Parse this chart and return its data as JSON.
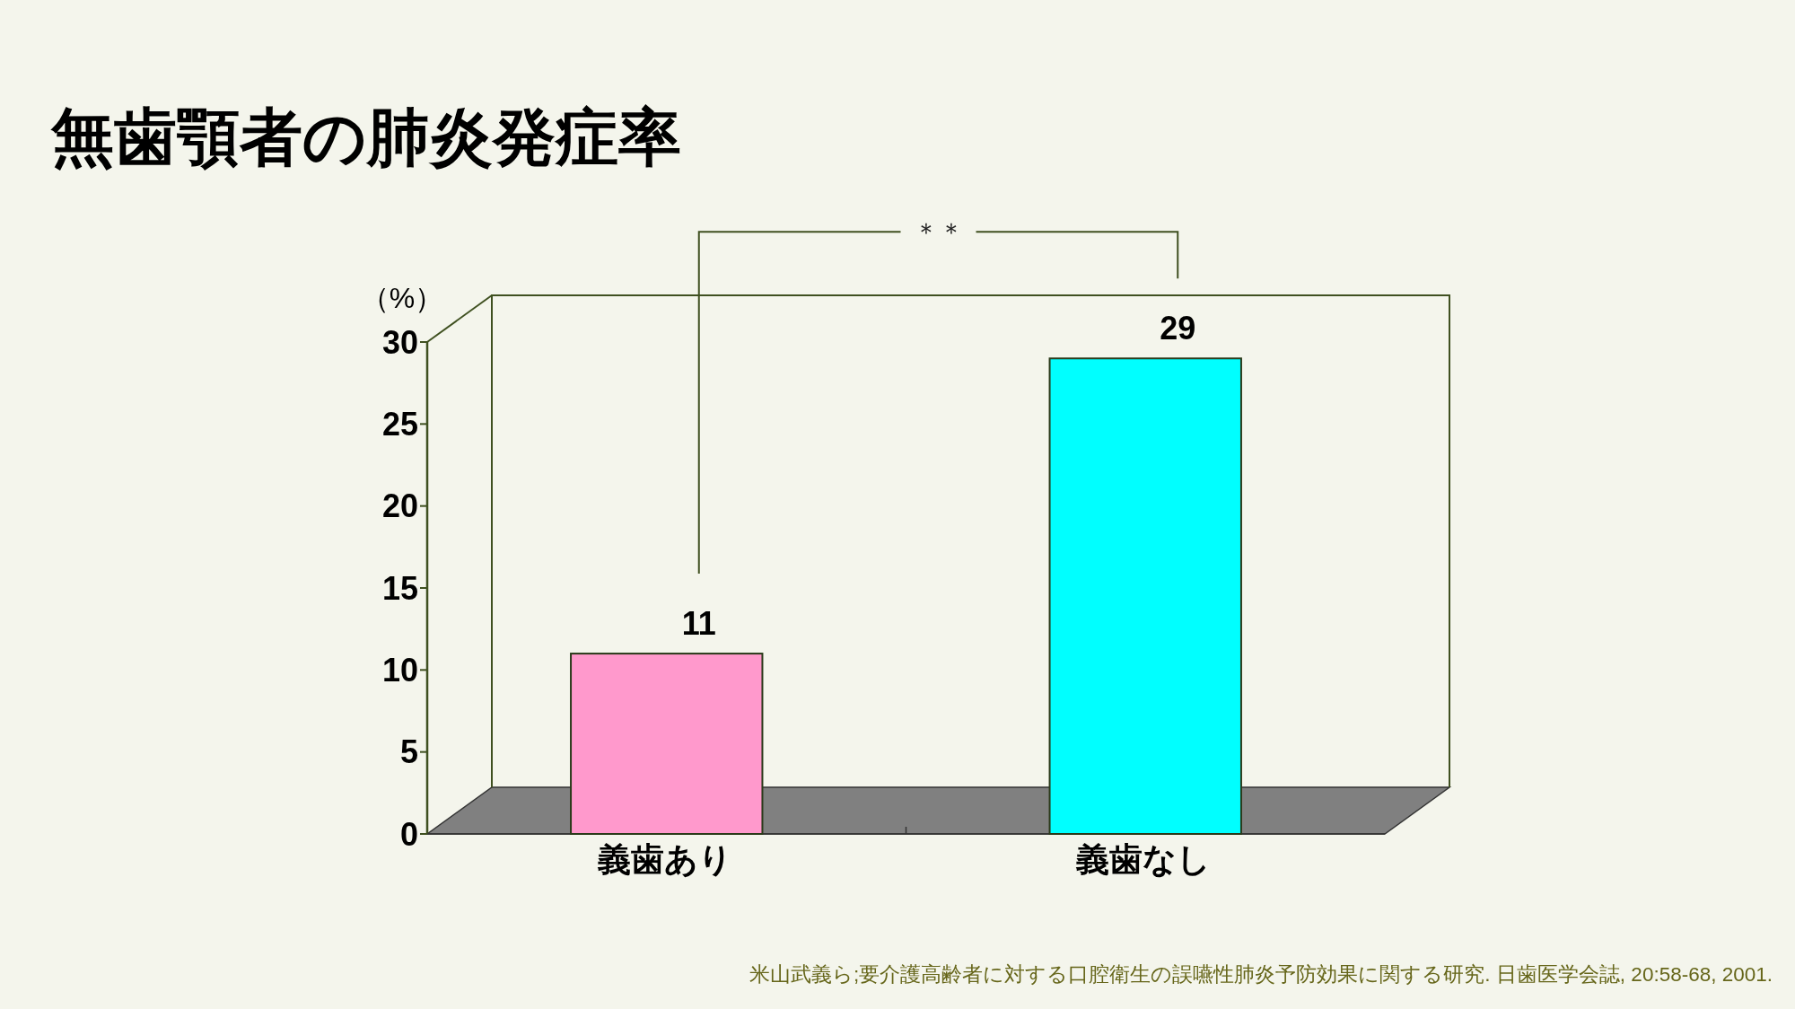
{
  "chart_data": {
    "type": "bar",
    "title": "無歯顎者の肺炎発症率",
    "ylabel": "（%）",
    "categories": [
      "義歯あり",
      "義歯なし"
    ],
    "values": [
      11,
      29
    ],
    "colors": [
      "#ff99cc",
      "#00ffff"
    ],
    "data_labels": true,
    "ylim": [
      0,
      30
    ],
    "yticks": [
      0,
      5,
      10,
      15,
      20,
      25,
      30
    ],
    "annotations": [
      "＊＊",
      "米山武義ら;要介護高齢者に対する口腔衛生の誤嚥性肺炎予防効果に関する研究. 日歯医学会誌, 20:58-68, 2001."
    ]
  }
}
